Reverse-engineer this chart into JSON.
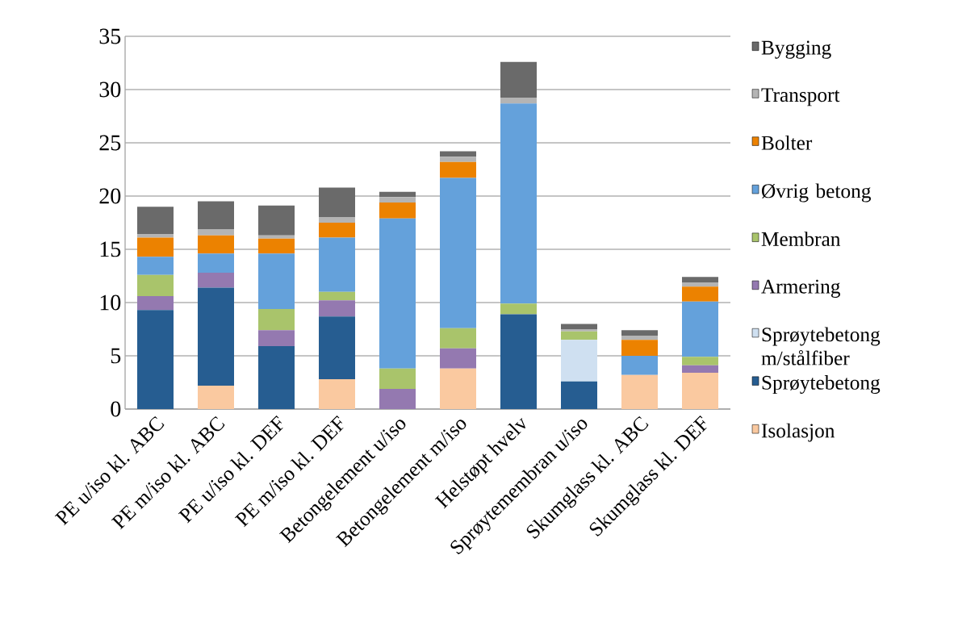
{
  "chart_data": {
    "type": "bar",
    "stacked": true,
    "categories": [
      "PE u/iso kl. ABC",
      "PE m/iso kl. ABC",
      "PE u/iso kl. DEF",
      "PE m/iso kl. DEF",
      "Betongelement u/iso",
      "Betongelement m/iso",
      "Helstøpt hvelv",
      "Sprøytemembran u/iso",
      "Skumglass kl. ABC",
      "Skumglass kl. DEF"
    ],
    "series": [
      {
        "name": "Isolasjon",
        "color": "#fac9a0",
        "values": [
          0,
          2.2,
          0,
          2.8,
          0,
          3.8,
          0,
          0,
          3.2,
          3.4
        ]
      },
      {
        "name": "Sprøytebetong",
        "color": "#265d91",
        "values": [
          9.3,
          9.2,
          5.9,
          5.9,
          0,
          0,
          8.9,
          2.6,
          0,
          0
        ]
      },
      {
        "name": "Sprøytebetong m/stålfiber",
        "color": "#cfe0f1",
        "values": [
          0,
          0,
          0,
          0,
          0,
          0,
          0,
          3.9,
          0,
          0
        ]
      },
      {
        "name": "Armering",
        "color": "#9479b0",
        "values": [
          1.3,
          1.4,
          1.5,
          1.5,
          1.9,
          1.9,
          0,
          0,
          0,
          0.7
        ]
      },
      {
        "name": "Membran",
        "color": "#a9c46b",
        "values": [
          2.0,
          0,
          2.0,
          0.8,
          1.9,
          1.9,
          1.0,
          0.8,
          0,
          0.8
        ]
      },
      {
        "name": "Øvrig betong",
        "color": "#64a1db",
        "values": [
          1.7,
          1.8,
          5.2,
          5.1,
          14.1,
          14.1,
          18.8,
          0,
          1.8,
          5.2
        ]
      },
      {
        "name": "Bolter",
        "color": "#ec8200",
        "values": [
          1.8,
          1.7,
          1.4,
          1.4,
          1.5,
          1.5,
          0,
          0,
          1.5,
          1.4
        ]
      },
      {
        "name": "Transport",
        "color": "#b4b4b4",
        "values": [
          0.3,
          0.6,
          0.3,
          0.5,
          0.5,
          0.5,
          0.5,
          0.2,
          0.4,
          0.4
        ]
      },
      {
        "name": "Bygging",
        "color": "#6a6a6a",
        "values": [
          2.6,
          2.6,
          2.8,
          2.8,
          0.5,
          0.5,
          3.4,
          0.5,
          0.5,
          0.5
        ]
      }
    ],
    "ylim": [
      0,
      35
    ],
    "yticks": [
      0,
      5,
      10,
      15,
      20,
      25,
      30,
      35
    ],
    "grid": "y",
    "legend": "right"
  }
}
